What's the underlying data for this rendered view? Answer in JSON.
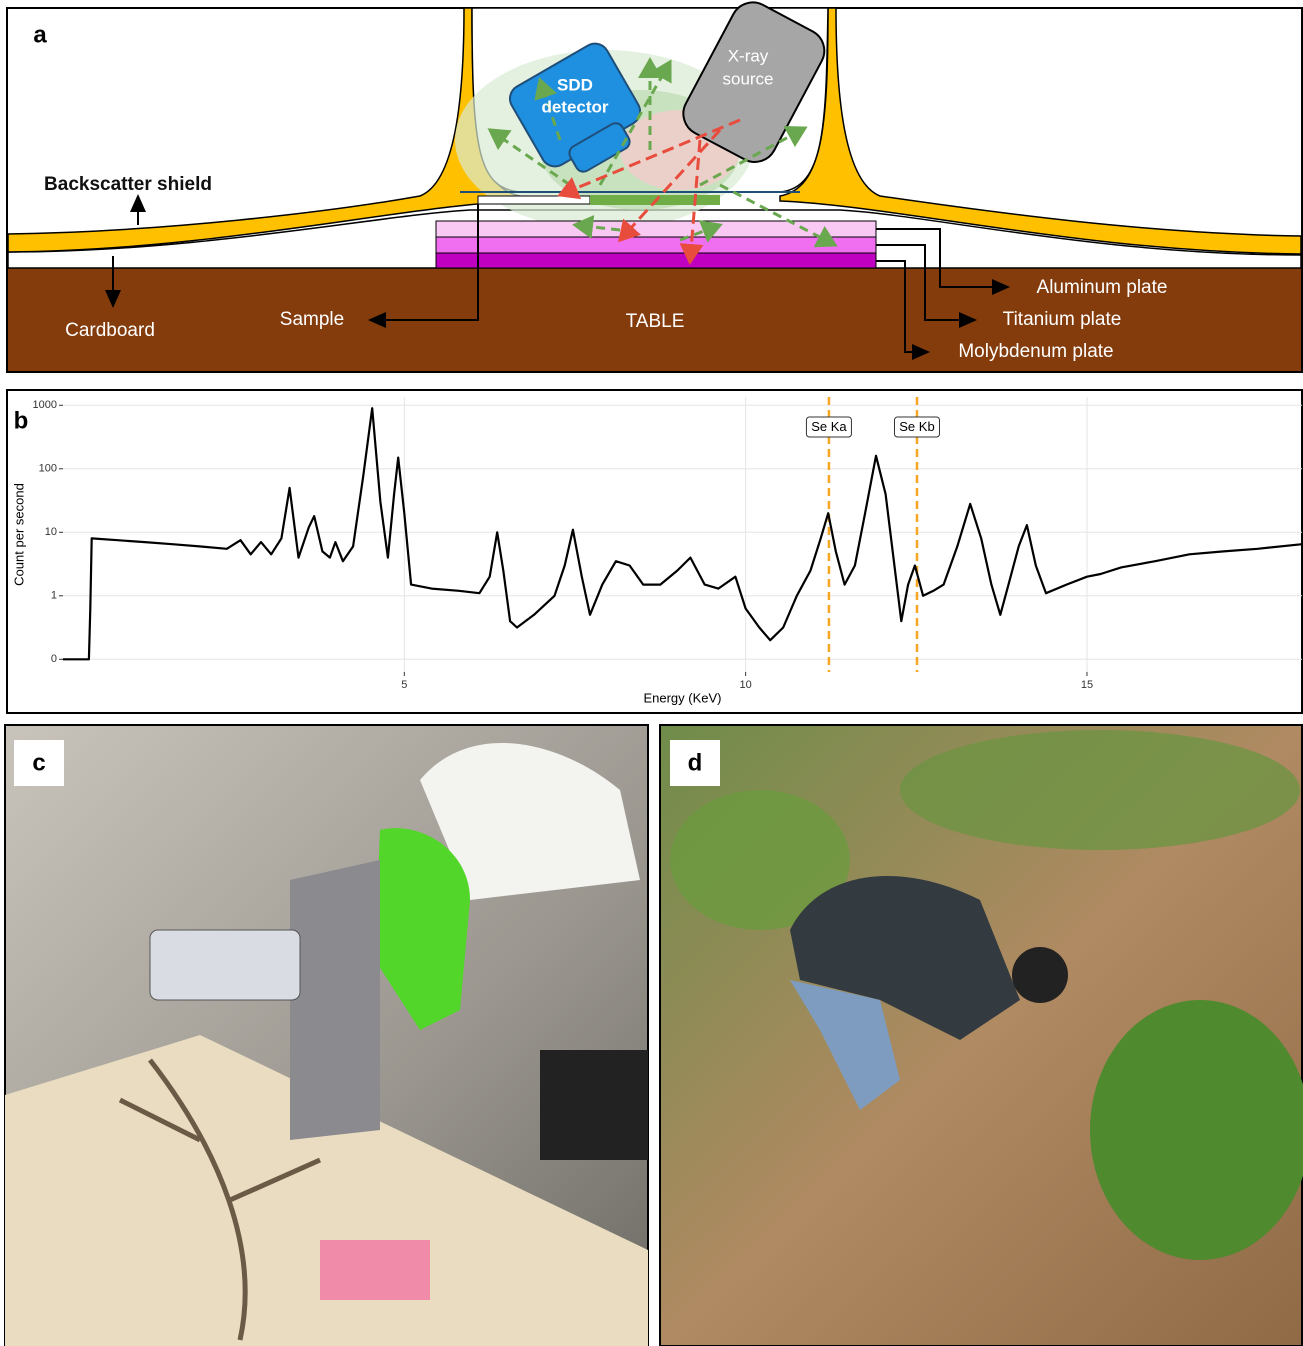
{
  "figure": {
    "a": {
      "label": "a",
      "sdd": [
        "SDD",
        "detector"
      ],
      "source": [
        "X-ray",
        "source"
      ],
      "shield": "Backscatter shield",
      "cardboard": "Cardboard",
      "sample": "Sample",
      "table": "TABLE",
      "aluminum": "Aluminum plate",
      "titanium": "Titanium plate",
      "molybdenum": "Molybdenum plate"
    },
    "b": {
      "label": "b"
    },
    "c": {
      "label": "c"
    },
    "d": {
      "label": "d"
    }
  },
  "chart_data": {
    "type": "line",
    "x_label": "Energy (KeV)",
    "y_label": "Count per second",
    "y_scale": "symlog",
    "grid": true,
    "color": "#000000",
    "marker_color": "#f5a623",
    "xlim": [
      0,
      18.15
    ],
    "xticks": [
      5,
      10,
      15
    ],
    "ylim": [
      -0.2,
      1350
    ],
    "yticks": [
      0,
      1,
      10,
      100,
      1000
    ],
    "markers": [
      {
        "x": 11.22,
        "label": "Se Ka"
      },
      {
        "x": 12.51,
        "label": "Se Kb"
      }
    ],
    "x": [
      0,
      0.38,
      0.4,
      0.42,
      0.8,
      1.2,
      1.6,
      2.0,
      2.4,
      2.6,
      2.75,
      2.9,
      3.05,
      3.2,
      3.32,
      3.45,
      3.6,
      3.68,
      3.8,
      3.91,
      3.99,
      4.1,
      4.25,
      4.4,
      4.53,
      4.65,
      4.76,
      4.85,
      4.91,
      5.0,
      5.1,
      5.4,
      5.8,
      6.1,
      6.25,
      6.36,
      6.45,
      6.55,
      6.65,
      6.9,
      7.2,
      7.35,
      7.47,
      7.6,
      7.72,
      7.9,
      8.1,
      8.3,
      8.5,
      8.75,
      9.0,
      9.19,
      9.4,
      9.6,
      9.85,
      10.0,
      10.2,
      10.36,
      10.55,
      10.75,
      10.95,
      11.1,
      11.21,
      11.32,
      11.45,
      11.6,
      11.75,
      11.91,
      12.05,
      12.2,
      12.28,
      12.38,
      12.48,
      12.6,
      12.75,
      12.9,
      13.1,
      13.29,
      13.45,
      13.6,
      13.73,
      13.85,
      14.0,
      14.12,
      14.25,
      14.4,
      14.7,
      15.0,
      15.2,
      15.5,
      16.0,
      16.5,
      17.0,
      17.5,
      18.15
    ],
    "values": [
      0,
      0,
      0.8,
      8,
      7.5,
      7,
      6.5,
      6,
      5.5,
      7.5,
      4.5,
      7,
      4.5,
      8,
      50,
      4,
      12,
      18,
      5,
      4,
      7,
      3.5,
      6,
      80,
      900,
      30,
      4,
      40,
      150,
      20,
      1.5,
      1.3,
      1.2,
      1.1,
      2,
      10,
      2.5,
      0.6,
      0.5,
      0.7,
      1,
      3,
      11,
      2,
      0.7,
      1.5,
      3.5,
      3,
      1.5,
      1.5,
      2.5,
      4,
      1.5,
      1.3,
      2,
      0.8,
      0.5,
      0.3,
      0.5,
      1,
      2.5,
      8,
      20,
      5,
      1.5,
      3,
      20,
      160,
      40,
      2,
      0.6,
      1.5,
      3,
      1,
      1.2,
      1.5,
      6,
      28,
      8,
      1.5,
      0.7,
      1.5,
      6,
      13,
      3,
      1.1,
      1.5,
      2,
      2.2,
      2.8,
      3.5,
      4.5,
      5,
      5.5,
      6.5
    ]
  }
}
